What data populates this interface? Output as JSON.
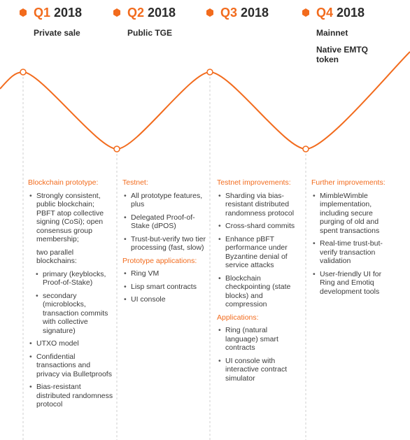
{
  "quarters": [
    {
      "quarter": "Q1",
      "year": "2018",
      "titles": [
        "Private sale"
      ],
      "sections": [
        {
          "heading": "Blockchain prototype:",
          "items": [
            {
              "text": "Strongly consistent, public blockchain; PBFT atop collective signing (CoSi); open consensus group membership;",
              "continuation": "two parallel blockchains:",
              "children": [
                {
                  "text": "primary (keyblocks, Proof-of-Stake)"
                },
                {
                  "text": "secondary (microblocks, transaction commits with collective signature)"
                }
              ]
            },
            {
              "text": "UTXO model"
            },
            {
              "text": "Confidential transactions and privacy via Bulletproofs"
            },
            {
              "text": "Bias-resistant distributed randomness protocol"
            }
          ]
        }
      ]
    },
    {
      "quarter": "Q2",
      "year": "2018",
      "titles": [
        "Public TGE"
      ],
      "sections": [
        {
          "heading": "Testnet:",
          "items": [
            {
              "text": "All prototype features, plus"
            },
            {
              "text": "Delegated Proof-of-Stake (dPOS)"
            },
            {
              "text": "Trust-but-verify two tier processing (fast, slow)"
            }
          ]
        },
        {
          "heading": "Prototype applications:",
          "items": [
            {
              "text": "Ring VM"
            },
            {
              "text": "Lisp smart contracts"
            },
            {
              "text": "UI console"
            }
          ]
        }
      ]
    },
    {
      "quarter": "Q3",
      "year": "2018",
      "titles": [],
      "sections": [
        {
          "heading": "Testnet improvements:",
          "items": [
            {
              "text": "Sharding via bias-resistant distributed randomness protocol"
            },
            {
              "text": "Cross-shard commits"
            },
            {
              "text": "Enhance pBFT performance under Byzantine denial of service attacks"
            },
            {
              "text": "Blockchain checkpointing (state blocks) and compression"
            }
          ]
        },
        {
          "heading": "Applications:",
          "items": [
            {
              "text": "Ring (natural language) smart contracts"
            },
            {
              "text": "UI console with interactive contract simulator"
            }
          ]
        }
      ]
    },
    {
      "quarter": "Q4",
      "year": "2018",
      "titles": [
        "Mainnet",
        "Native EMTQ token"
      ],
      "sections": [
        {
          "heading": "Further improvements:",
          "items": [
            {
              "text": "MimbleWimble implementation, including secure purging of old and spent transactions"
            },
            {
              "text": "Real-time trust-but-verify transaction validation"
            },
            {
              "text": "User-friendly UI for Ring and Emotiq development tools"
            }
          ]
        }
      ]
    }
  ]
}
